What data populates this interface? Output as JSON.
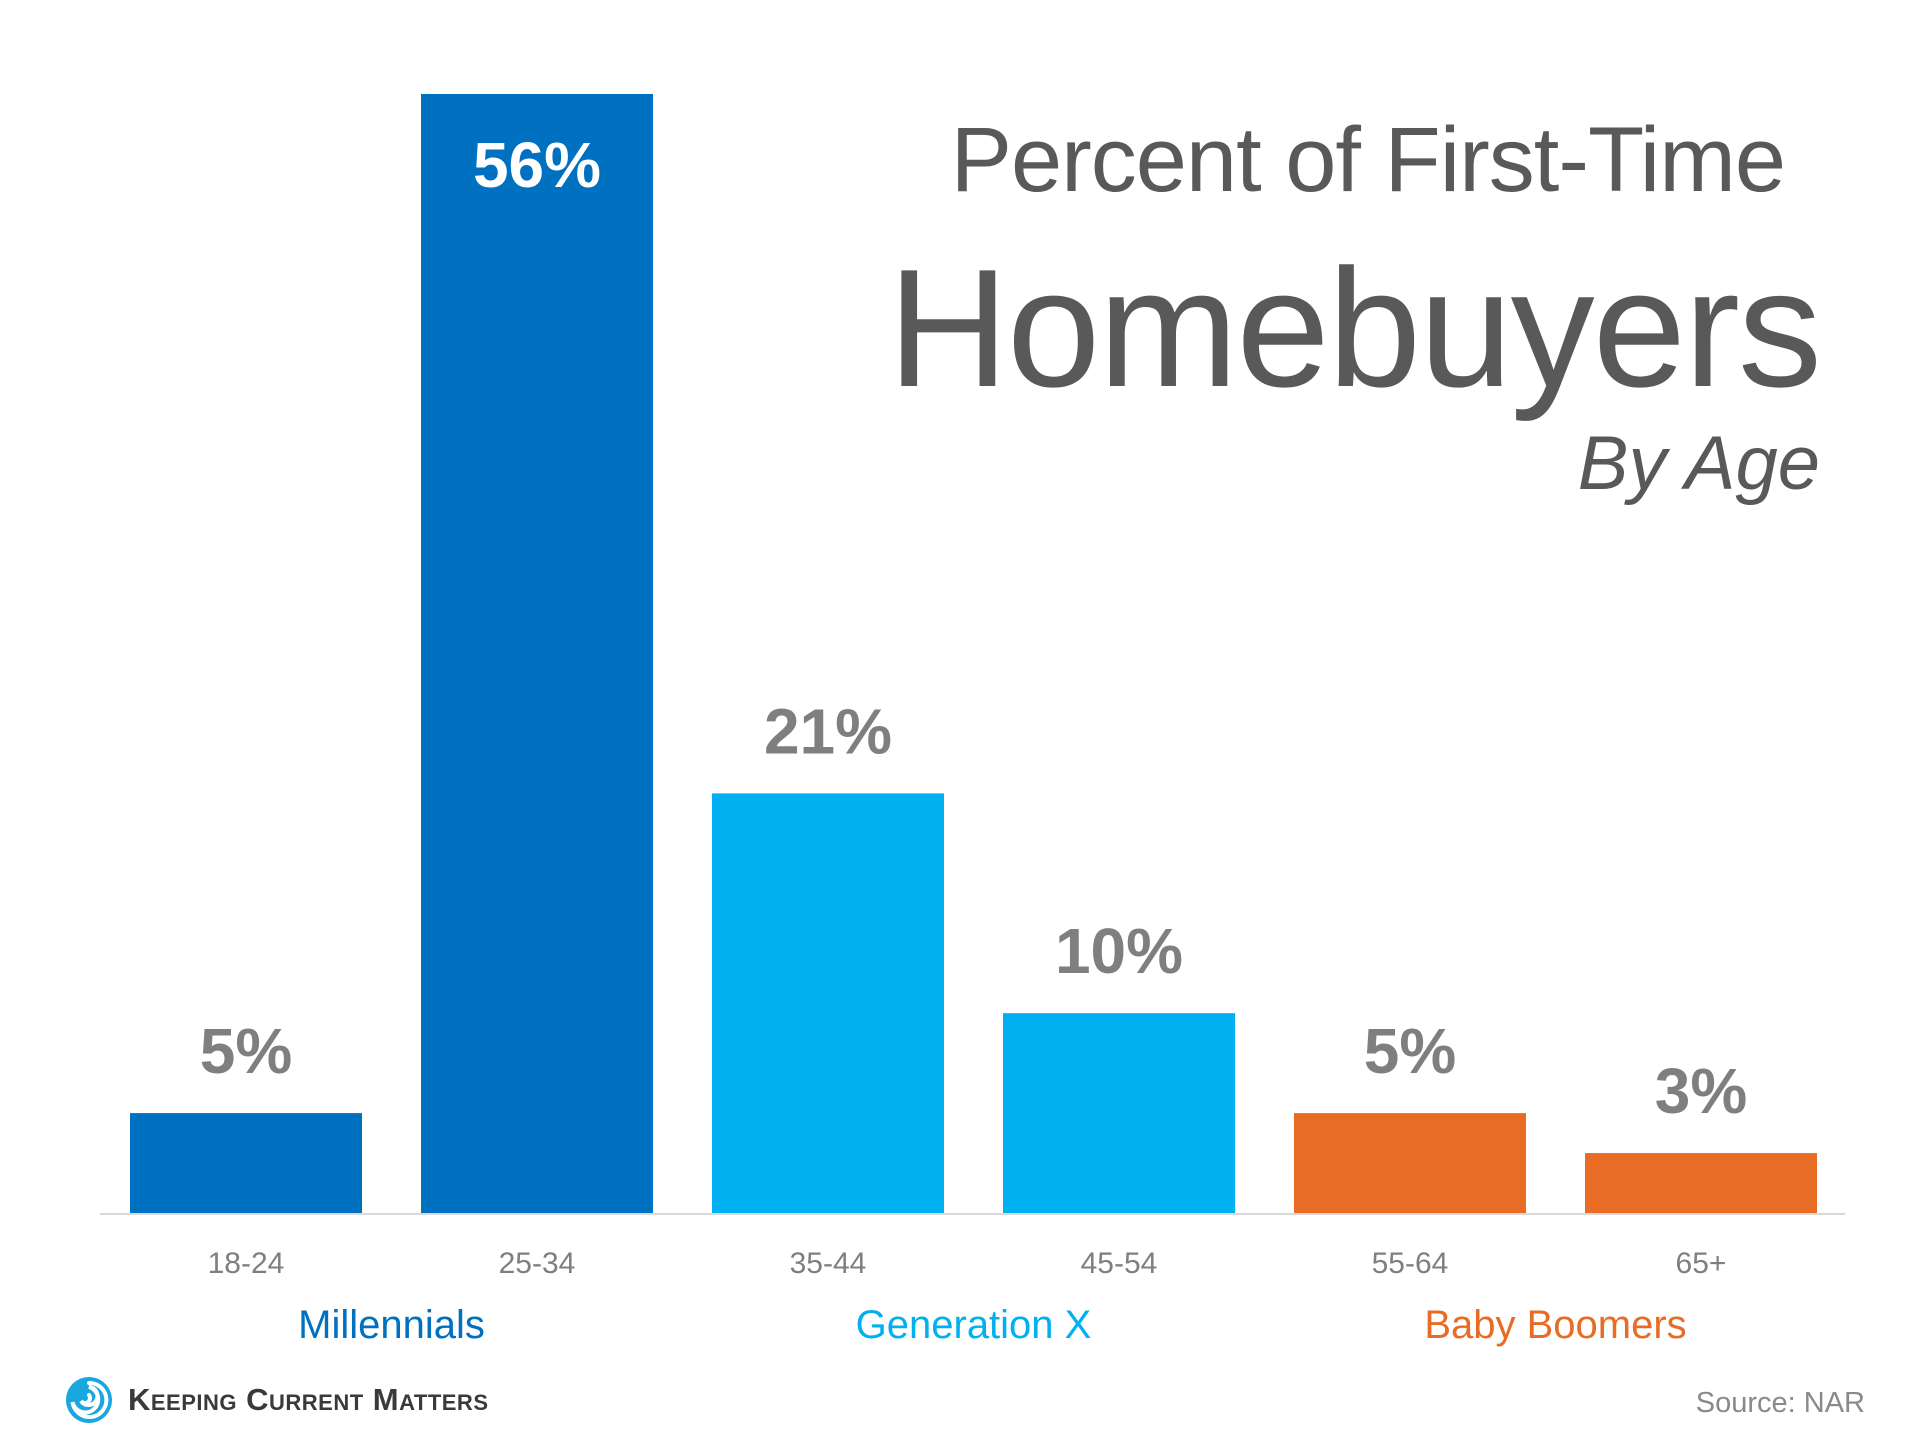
{
  "title": {
    "line1": "Percent of First-Time",
    "line2": "Homebuyers",
    "line3": "By Age"
  },
  "chart_data": {
    "type": "bar",
    "categories": [
      "18-24",
      "25-34",
      "35-44",
      "45-54",
      "55-64",
      "65+"
    ],
    "values": [
      5,
      56,
      21,
      10,
      5,
      3
    ],
    "value_labels": [
      "5%",
      "56%",
      "21%",
      "10%",
      "5%",
      "3%"
    ],
    "bar_colors": [
      "#0070c0",
      "#0070c0",
      "#00b0f0",
      "#00b0f0",
      "#e86c25",
      "#e86c25"
    ],
    "groups": [
      {
        "name": "Millennials",
        "categories": [
          "18-24",
          "25-34"
        ],
        "color": "#0070c0"
      },
      {
        "name": "Generation X",
        "categories": [
          "35-44",
          "45-54"
        ],
        "color": "#00b0f0"
      },
      {
        "name": "Baby Boomers",
        "categories": [
          "55-64",
          "65+"
        ],
        "color": "#e86c25"
      }
    ],
    "ylim": [
      0,
      56
    ],
    "grid": false
  },
  "footer": {
    "brand": "Keeping Current Matters",
    "source": "Source: NAR"
  },
  "colors": {
    "text_gray": "#595959",
    "label_gray": "#7f7f7f",
    "baseline": "#d9d9d9"
  }
}
